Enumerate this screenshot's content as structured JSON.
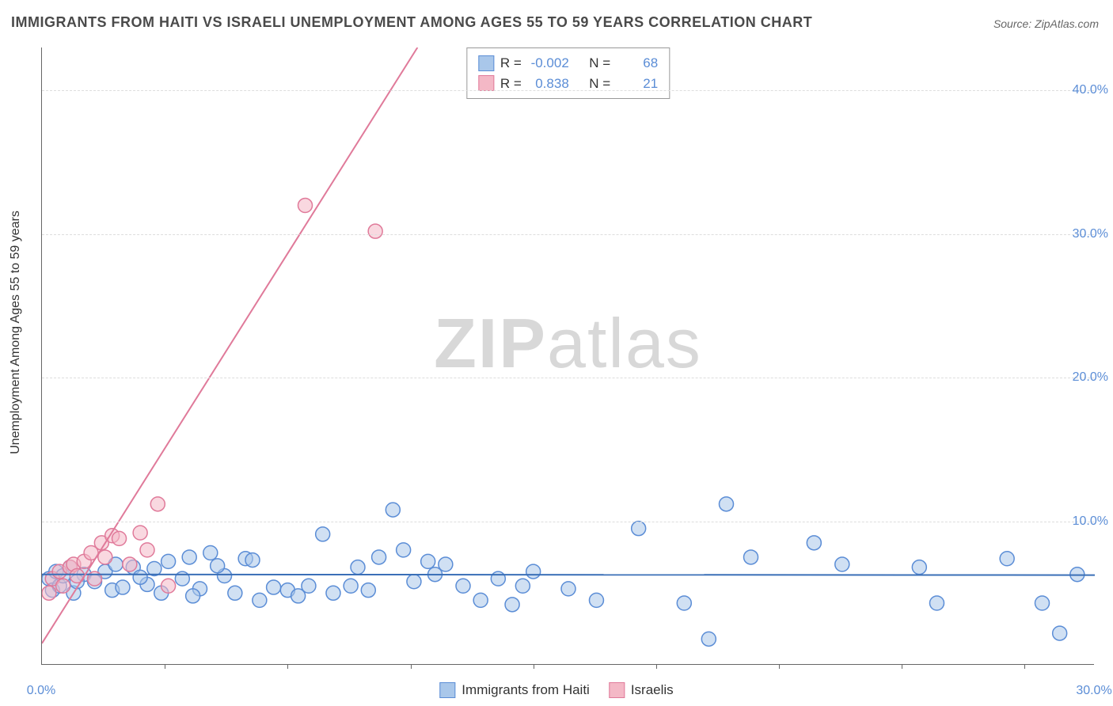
{
  "title": "IMMIGRANTS FROM HAITI VS ISRAELI UNEMPLOYMENT AMONG AGES 55 TO 59 YEARS CORRELATION CHART",
  "source": "Source: ZipAtlas.com",
  "ylabel": "Unemployment Among Ages 55 to 59 years",
  "watermark_bold": "ZIP",
  "watermark_rest": "atlas",
  "chart": {
    "type": "scatter",
    "xlim": [
      0,
      30
    ],
    "ylim": [
      0,
      43
    ],
    "x_ticks": [
      0,
      3.5,
      7,
      10.5,
      14,
      17.5,
      21,
      24.5,
      28
    ],
    "x_tick_labels": {
      "0": "0.0%",
      "30": "30.0%"
    },
    "y_ticks": [
      10,
      20,
      30,
      40
    ],
    "y_tick_labels": {
      "10": "10.0%",
      "20": "20.0%",
      "30": "30.0%",
      "40": "40.0%"
    },
    "grid_color": "#dddddd",
    "background_color": "#ffffff",
    "axis_color": "#666666",
    "tick_label_color": "#5b8dd6",
    "marker_radius": 9,
    "marker_stroke_width": 1.5,
    "trend_line_width": 2,
    "series": [
      {
        "name": "Immigrants from Haiti",
        "fill": "#a9c7ea",
        "stroke": "#5b8dd6",
        "fill_opacity": 0.55,
        "R": "-0.002",
        "N": "68",
        "trend": {
          "x1": 0,
          "y1": 6.3,
          "x2": 30,
          "y2": 6.25,
          "color": "#3a6fb7"
        },
        "points": [
          [
            0.2,
            6.0
          ],
          [
            0.3,
            5.2
          ],
          [
            0.4,
            6.5
          ],
          [
            0.5,
            5.5
          ],
          [
            0.6,
            6.2
          ],
          [
            0.8,
            6.8
          ],
          [
            0.9,
            5.0
          ],
          [
            1.2,
            6.3
          ],
          [
            1.5,
            5.8
          ],
          [
            1.8,
            6.5
          ],
          [
            2.0,
            5.2
          ],
          [
            2.1,
            7.0
          ],
          [
            2.3,
            5.4
          ],
          [
            2.6,
            6.8
          ],
          [
            3.0,
            5.6
          ],
          [
            3.2,
            6.7
          ],
          [
            3.4,
            5.0
          ],
          [
            3.6,
            7.2
          ],
          [
            4.0,
            6.0
          ],
          [
            4.2,
            7.5
          ],
          [
            4.5,
            5.3
          ],
          [
            4.8,
            7.8
          ],
          [
            5.2,
            6.2
          ],
          [
            5.5,
            5.0
          ],
          [
            5.8,
            7.4
          ],
          [
            6.2,
            4.5
          ],
          [
            6.6,
            5.4
          ],
          [
            7.0,
            5.2
          ],
          [
            7.3,
            4.8
          ],
          [
            7.6,
            5.5
          ],
          [
            8.0,
            9.1
          ],
          [
            8.3,
            5.0
          ],
          [
            9.0,
            6.8
          ],
          [
            9.3,
            5.2
          ],
          [
            9.6,
            7.5
          ],
          [
            10.0,
            10.8
          ],
          [
            10.3,
            8.0
          ],
          [
            10.6,
            5.8
          ],
          [
            11.0,
            7.2
          ],
          [
            11.5,
            7.0
          ],
          [
            12.0,
            5.5
          ],
          [
            12.5,
            4.5
          ],
          [
            13.0,
            6.0
          ],
          [
            13.4,
            4.2
          ],
          [
            13.7,
            5.5
          ],
          [
            14.0,
            6.5
          ],
          [
            15.0,
            5.3
          ],
          [
            15.8,
            4.5
          ],
          [
            17.0,
            9.5
          ],
          [
            18.3,
            4.3
          ],
          [
            19.5,
            11.2
          ],
          [
            20.2,
            7.5
          ],
          [
            19.0,
            1.8
          ],
          [
            22.0,
            8.5
          ],
          [
            22.8,
            7.0
          ],
          [
            25.0,
            6.8
          ],
          [
            25.5,
            4.3
          ],
          [
            27.5,
            7.4
          ],
          [
            28.5,
            4.3
          ],
          [
            29.0,
            2.2
          ],
          [
            29.5,
            6.3
          ],
          [
            1.0,
            5.8
          ],
          [
            2.8,
            6.1
          ],
          [
            4.3,
            4.8
          ],
          [
            5.0,
            6.9
          ],
          [
            6.0,
            7.3
          ],
          [
            8.8,
            5.5
          ],
          [
            11.2,
            6.3
          ]
        ]
      },
      {
        "name": "Israelis",
        "fill": "#f4b8c6",
        "stroke": "#e07a9a",
        "fill_opacity": 0.55,
        "R": "0.838",
        "N": "21",
        "trend": {
          "x1": 0,
          "y1": 1.5,
          "x2": 10.7,
          "y2": 43,
          "color": "#e07a9a"
        },
        "points": [
          [
            0.2,
            5.0
          ],
          [
            0.3,
            6.0
          ],
          [
            0.5,
            6.5
          ],
          [
            0.6,
            5.5
          ],
          [
            0.8,
            6.8
          ],
          [
            0.9,
            7.0
          ],
          [
            1.0,
            6.2
          ],
          [
            1.2,
            7.2
          ],
          [
            1.4,
            7.8
          ],
          [
            1.5,
            6.0
          ],
          [
            1.7,
            8.5
          ],
          [
            1.8,
            7.5
          ],
          [
            2.0,
            9.0
          ],
          [
            2.2,
            8.8
          ],
          [
            2.5,
            7.0
          ],
          [
            2.8,
            9.2
          ],
          [
            3.0,
            8.0
          ],
          [
            3.3,
            11.2
          ],
          [
            3.6,
            5.5
          ],
          [
            7.5,
            32.0
          ],
          [
            9.5,
            30.2
          ]
        ]
      }
    ]
  },
  "legend": {
    "series1": "Immigrants from Haiti",
    "series2": "Israelis"
  },
  "stats_box": {
    "r_label": "R =",
    "n_label": "N ="
  }
}
